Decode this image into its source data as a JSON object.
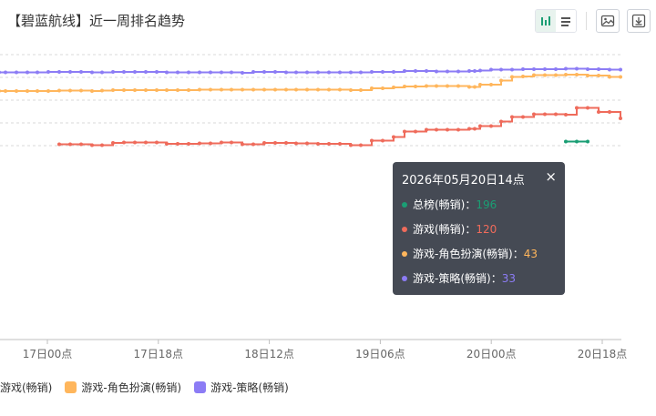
{
  "title": "【碧蓝航线】近一周排名趋势",
  "toolbar": {
    "icons": [
      "bar-chart-icon",
      "list-icon",
      "image-icon",
      "download-icon"
    ]
  },
  "colors": {
    "total": "#1a9e74",
    "game": "#ef6b5b",
    "rpg": "#ffb65c",
    "strategy": "#8c7cf5",
    "grid": "#d9d9d9",
    "tooltip_bg": "#454a54"
  },
  "chart_data": {
    "type": "line",
    "x_ticks": [
      "17日00点",
      "17日18点",
      "18日12点",
      "19日06点",
      "20日00点",
      "20日18点"
    ],
    "series": [
      {
        "name": "游戏-策略(畅销)",
        "color": "#8c7cf5",
        "values": [
          [
            -1,
            39
          ],
          [
            6,
            39
          ],
          [
            18,
            39
          ],
          [
            30,
            39
          ],
          [
            41,
            39
          ],
          [
            53,
            38
          ],
          [
            65,
            38
          ],
          [
            77,
            38
          ],
          [
            89,
            38
          ],
          [
            101,
            39
          ],
          [
            112,
            39
          ],
          [
            124,
            38
          ],
          [
            136,
            38
          ],
          [
            148,
            38
          ],
          [
            160,
            38
          ],
          [
            172,
            38
          ],
          [
            183,
            39
          ],
          [
            195,
            39
          ],
          [
            207,
            39
          ],
          [
            219,
            39
          ],
          [
            231,
            39
          ],
          [
            243,
            39
          ],
          [
            254,
            39
          ],
          [
            266,
            40
          ],
          [
            278,
            38
          ],
          [
            290,
            38
          ],
          [
            302,
            38
          ],
          [
            314,
            39
          ],
          [
            325,
            39
          ],
          [
            337,
            39
          ],
          [
            349,
            39
          ],
          [
            361,
            39
          ],
          [
            373,
            39
          ],
          [
            385,
            39
          ],
          [
            396,
            39
          ],
          [
            408,
            38
          ],
          [
            420,
            38
          ],
          [
            432,
            38
          ],
          [
            444,
            36
          ],
          [
            456,
            36
          ],
          [
            468,
            36
          ],
          [
            479,
            37
          ],
          [
            491,
            37
          ],
          [
            503,
            37
          ],
          [
            515,
            36
          ],
          [
            521,
            36
          ],
          [
            527,
            35
          ],
          [
            539,
            33
          ],
          [
            550,
            33
          ],
          [
            562,
            33
          ],
          [
            574,
            32
          ],
          [
            586,
            32
          ],
          [
            598,
            32
          ],
          [
            610,
            32
          ],
          [
            621,
            31
          ],
          [
            633,
            31
          ],
          [
            645,
            32
          ],
          [
            657,
            32
          ],
          [
            669,
            33
          ],
          [
            681,
            33
          ]
        ]
      },
      {
        "name": "游戏-角色扮演(畅销)",
        "color": "#ffb65c",
        "values": [
          [
            -1,
            80
          ],
          [
            6,
            80
          ],
          [
            18,
            80
          ],
          [
            30,
            80
          ],
          [
            41,
            80
          ],
          [
            53,
            80
          ],
          [
            65,
            79
          ],
          [
            77,
            79
          ],
          [
            89,
            79
          ],
          [
            101,
            80
          ],
          [
            112,
            79
          ],
          [
            124,
            78
          ],
          [
            136,
            78
          ],
          [
            148,
            78
          ],
          [
            160,
            78
          ],
          [
            172,
            78
          ],
          [
            183,
            78
          ],
          [
            195,
            78
          ],
          [
            207,
            78
          ],
          [
            219,
            77
          ],
          [
            231,
            77
          ],
          [
            243,
            77
          ],
          [
            254,
            77
          ],
          [
            266,
            77
          ],
          [
            278,
            77
          ],
          [
            290,
            77
          ],
          [
            302,
            77
          ],
          [
            314,
            77
          ],
          [
            325,
            77
          ],
          [
            337,
            77
          ],
          [
            349,
            77
          ],
          [
            361,
            77
          ],
          [
            373,
            77
          ],
          [
            385,
            78
          ],
          [
            396,
            78
          ],
          [
            408,
            74
          ],
          [
            420,
            74
          ],
          [
            432,
            72
          ],
          [
            444,
            70
          ],
          [
            456,
            70
          ],
          [
            468,
            69
          ],
          [
            479,
            69
          ],
          [
            491,
            69
          ],
          [
            503,
            69
          ],
          [
            515,
            71
          ],
          [
            521,
            71
          ],
          [
            527,
            66
          ],
          [
            539,
            66
          ],
          [
            550,
            57
          ],
          [
            562,
            49
          ],
          [
            574,
            48
          ],
          [
            586,
            45
          ],
          [
            598,
            45
          ],
          [
            610,
            45
          ],
          [
            621,
            44
          ],
          [
            633,
            44
          ],
          [
            645,
            46
          ],
          [
            657,
            46
          ],
          [
            669,
            49
          ],
          [
            681,
            49
          ]
        ]
      },
      {
        "name": "游戏(畅销)",
        "color": "#ef6b5b",
        "values": [
          [
            65,
            197
          ],
          [
            77,
            197
          ],
          [
            89,
            197
          ],
          [
            101,
            199
          ],
          [
            112,
            199
          ],
          [
            124,
            194
          ],
          [
            136,
            193
          ],
          [
            148,
            193
          ],
          [
            160,
            193
          ],
          [
            172,
            193
          ],
          [
            183,
            196
          ],
          [
            195,
            196
          ],
          [
            207,
            196
          ],
          [
            219,
            195
          ],
          [
            231,
            195
          ],
          [
            243,
            193
          ],
          [
            254,
            193
          ],
          [
            266,
            197
          ],
          [
            278,
            197
          ],
          [
            290,
            194
          ],
          [
            302,
            194
          ],
          [
            314,
            194
          ],
          [
            325,
            195
          ],
          [
            337,
            195
          ],
          [
            349,
            196
          ],
          [
            361,
            196
          ],
          [
            373,
            196
          ],
          [
            385,
            199
          ],
          [
            396,
            199
          ],
          [
            408,
            189
          ],
          [
            420,
            189
          ],
          [
            432,
            181
          ],
          [
            444,
            169
          ],
          [
            456,
            169
          ],
          [
            468,
            165
          ],
          [
            479,
            165
          ],
          [
            491,
            165
          ],
          [
            503,
            165
          ],
          [
            515,
            163
          ],
          [
            521,
            163
          ],
          [
            527,
            157
          ],
          [
            539,
            157
          ],
          [
            550,
            147
          ],
          [
            562,
            137
          ],
          [
            574,
            137
          ],
          [
            586,
            131
          ],
          [
            598,
            131
          ],
          [
            610,
            131
          ],
          [
            621,
            132
          ],
          [
            633,
            117
          ],
          [
            645,
            117
          ],
          [
            657,
            126
          ],
          [
            669,
            126
          ],
          [
            681,
            140
          ]
        ]
      },
      {
        "name": "总榜(畅销)",
        "color": "#1a9e74",
        "values": [
          [
            621,
            191
          ],
          [
            633,
            191
          ],
          [
            645,
            191
          ]
        ]
      }
    ],
    "ylim": [
      0,
      240
    ],
    "grid": true,
    "legend": "bottom"
  },
  "legend": [
    {
      "label": "游戏(畅销)",
      "color": "#ef6b5b"
    },
    {
      "label": "游戏-角色扮演(畅销)",
      "color": "#ffb65c"
    },
    {
      "label": "游戏-策略(畅销)",
      "color": "#8c7cf5"
    }
  ],
  "tooltip": {
    "title": "2026年05月20日14点",
    "close": "×",
    "rows": [
      {
        "label": "总榜(畅销)：",
        "value": "196",
        "color": "#1a9e74"
      },
      {
        "label": "游戏(畅销)：",
        "value": "120",
        "color": "#ef6b5b"
      },
      {
        "label": "游戏-角色扮演(畅销)：",
        "value": "43",
        "color": "#ffb65c"
      },
      {
        "label": "游戏-策略(畅销)：",
        "value": "33",
        "color": "#8c7cf5"
      }
    ]
  }
}
